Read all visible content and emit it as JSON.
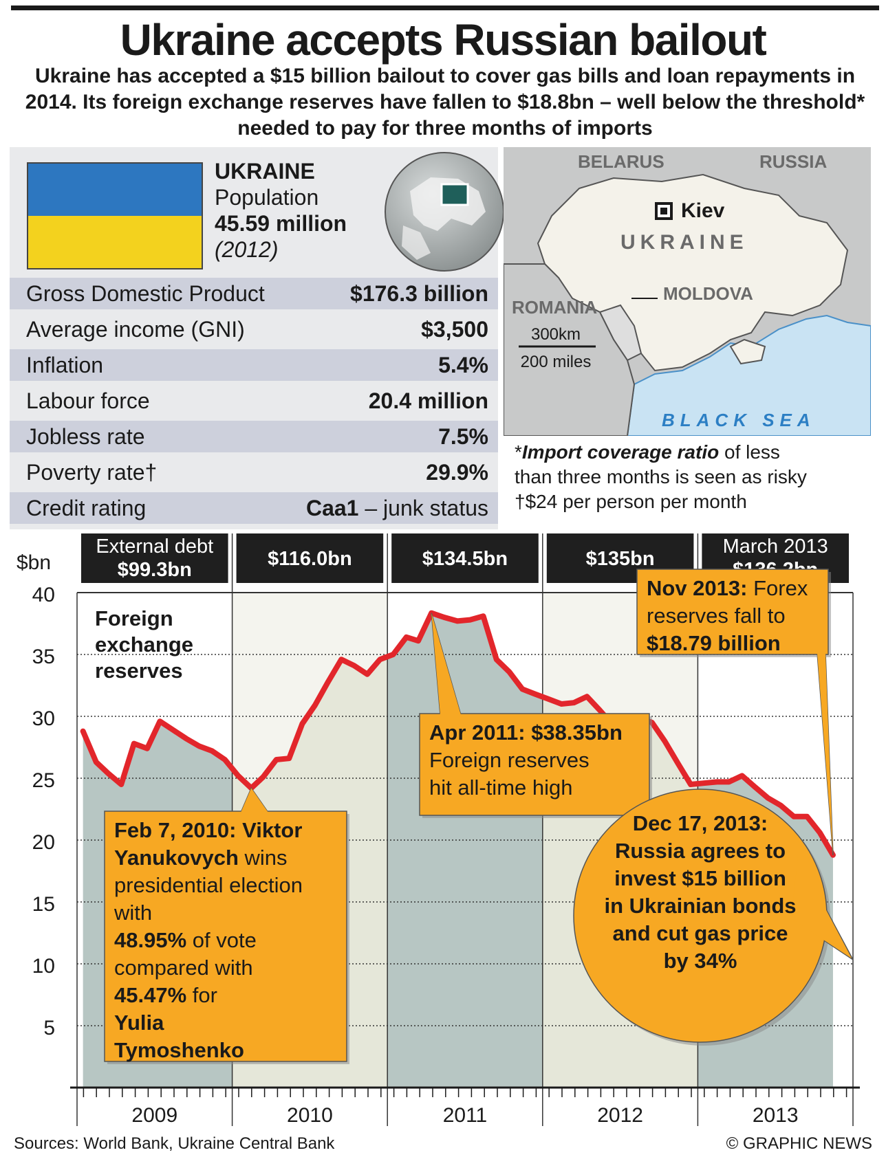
{
  "title": "Ukraine accepts Russian bailout",
  "subtitle": "Ukraine has accepted a $15 billion bailout to cover gas bills and loan repayments in 2014. Its foreign exchange reserves have fallen to $18.8bn – well below the threshold* needed to pay for three months of imports",
  "country": {
    "name": "UKRAINE",
    "population_label": "Population",
    "population_value": "45.59 million",
    "population_year": "(2012)",
    "flag_colors": [
      "#2d77c0",
      "#f3d21e"
    ]
  },
  "stats": [
    {
      "label": "Gross Domestic Product",
      "value": "$176.3 billion",
      "suffix": ""
    },
    {
      "label": "Average income (GNI)",
      "value": "$3,500",
      "suffix": ""
    },
    {
      "label": "Inflation",
      "value": "5.4%",
      "suffix": ""
    },
    {
      "label": "Labour force",
      "value": "20.4 million",
      "suffix": ""
    },
    {
      "label": "Jobless rate",
      "value": "7.5%",
      "suffix": ""
    },
    {
      "label": "Poverty rate†",
      "value": "29.9%",
      "suffix": ""
    },
    {
      "label": "Credit rating",
      "value": "Caa1",
      "suffix": " – junk status"
    }
  ],
  "map": {
    "labels": {
      "belarus": "BELARUS",
      "russia": "RUSSIA",
      "kiev": "Kiev",
      "ukraine": "UKRAINE",
      "moldova": "MOLDOVA",
      "romania": "ROMANIA",
      "black_sea": "BLACK SEA",
      "scale_km": "300km",
      "scale_miles": "200 miles"
    }
  },
  "notes": {
    "star": "*",
    "import_bold": "Import coverage ratio",
    "import_rest": " of less",
    "import_line2": "than three months is seen as risky",
    "dagger": "†$24 per person per month"
  },
  "chart_data": {
    "type": "area",
    "ylabel": "$bn",
    "ylim": [
      0,
      40
    ],
    "yticks": [
      5,
      10,
      15,
      20,
      25,
      30,
      35,
      40
    ],
    "series_label": [
      "Foreign",
      "exchange",
      "reserves"
    ],
    "years": [
      "2009",
      "2010",
      "2011",
      "2012",
      "2013"
    ],
    "external_debt": [
      {
        "line1": "External debt",
        "line2": "$99.3bn"
      },
      {
        "line1": "",
        "line2": "$116.0bn"
      },
      {
        "line1": "",
        "line2": "$134.5bn"
      },
      {
        "line1": "",
        "line2": "$135bn"
      },
      {
        "line1": "March 2013",
        "line2": "$136.2bn"
      }
    ],
    "x": [
      "2009-01",
      "2009-02",
      "2009-03",
      "2009-04",
      "2009-05",
      "2009-06",
      "2009-07",
      "2009-08",
      "2009-09",
      "2009-10",
      "2009-11",
      "2009-12",
      "2010-01",
      "2010-02",
      "2010-03",
      "2010-04",
      "2010-05",
      "2010-06",
      "2010-07",
      "2010-08",
      "2010-09",
      "2010-10",
      "2010-11",
      "2010-12",
      "2011-01",
      "2011-02",
      "2011-03",
      "2011-04",
      "2011-05",
      "2011-06",
      "2011-07",
      "2011-08",
      "2011-09",
      "2011-10",
      "2011-11",
      "2011-12",
      "2012-01",
      "2012-02",
      "2012-03",
      "2012-04",
      "2012-05",
      "2012-06",
      "2012-07",
      "2012-08",
      "2012-09",
      "2012-10",
      "2012-11",
      "2012-12",
      "2013-01",
      "2013-02",
      "2013-03",
      "2013-04",
      "2013-05",
      "2013-06",
      "2013-07",
      "2013-08",
      "2013-09",
      "2013-10",
      "2013-11"
    ],
    "values": [
      28.8,
      26.3,
      25.4,
      24.5,
      27.8,
      27.4,
      29.6,
      28.9,
      28.2,
      27.6,
      27.2,
      26.5,
      25.2,
      24.2,
      25.1,
      26.5,
      26.6,
      29.4,
      30.9,
      32.8,
      34.6,
      34.1,
      33.4,
      34.6,
      35.0,
      36.4,
      36.1,
      38.35,
      38.0,
      37.7,
      37.8,
      38.1,
      34.6,
      33.6,
      32.2,
      31.8,
      31.4,
      31.0,
      31.1,
      31.6,
      30.5,
      29.3,
      30.0,
      29.9,
      29.5,
      28.0,
      26.2,
      24.5,
      24.6,
      24.7,
      24.7,
      25.2,
      24.3,
      23.4,
      22.8,
      21.9,
      21.9,
      20.6,
      18.79
    ],
    "annotations": [
      {
        "date": "2010-02",
        "value": 24.2,
        "parts": [
          [
            "Feb 7, 2010: Viktor",
            true
          ],
          [
            "Yanukovych",
            true
          ],
          [
            " wins",
            false
          ],
          [
            "presidential election",
            false
          ],
          [
            "with ",
            false
          ],
          [
            "48.95%",
            true
          ],
          [
            " of vote",
            false
          ],
          [
            "compared with",
            false
          ],
          [
            "45.47%",
            true
          ],
          [
            " for ",
            false
          ],
          [
            "Yulia",
            true
          ],
          [
            "Tymoshenko",
            true
          ]
        ]
      },
      {
        "date": "2011-04",
        "value": 38.35,
        "parts": [
          [
            "Apr 2011: $38.35bn",
            true
          ],
          [
            "Foreign reserves",
            false
          ],
          [
            "hit all-time high",
            false
          ]
        ]
      },
      {
        "date": "2013-11",
        "value": 18.79,
        "parts": [
          [
            "Nov 2013:",
            true
          ],
          [
            " Forex",
            false
          ],
          [
            "reserves fall to",
            false
          ],
          [
            "$18.79 billion",
            true
          ]
        ]
      },
      {
        "date": "2013-12",
        "parts": [
          [
            "Dec 17, 2013:",
            true
          ],
          [
            "Russia agrees to",
            true
          ],
          [
            "invest $15 billion",
            true
          ],
          [
            "in Ukrainian bonds",
            true
          ],
          [
            "and cut gas price",
            true
          ],
          [
            "by 34%",
            true
          ]
        ]
      }
    ],
    "colors": {
      "line": "#e2262b",
      "fill_dark": "#b7c6c3",
      "fill_light": "#e5e7d9",
      "callout": "#f7a823",
      "header": "#1f1f1f"
    }
  },
  "footer": {
    "sources": "Sources: World Bank, Ukraine Central Bank",
    "credit": "© GRAPHIC NEWS"
  }
}
